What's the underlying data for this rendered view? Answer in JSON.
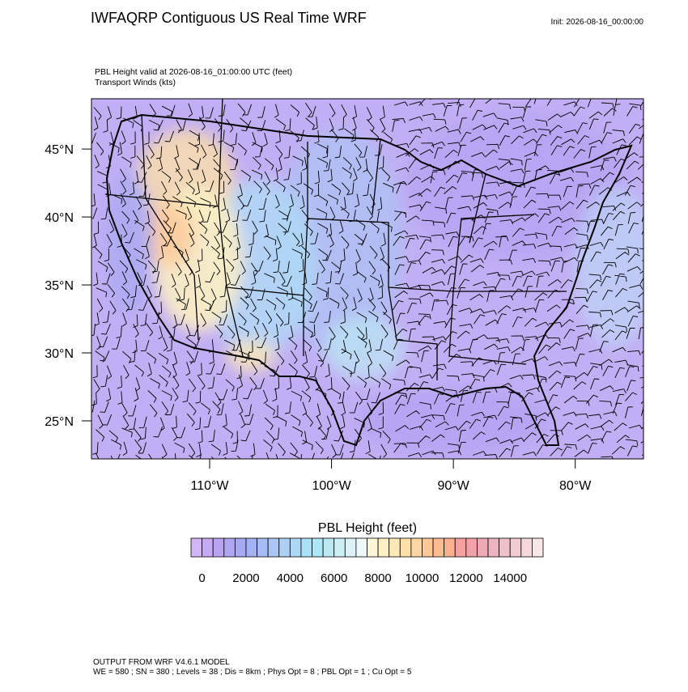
{
  "header": {
    "title": "IWFAQRP Contiguous US Real Time WRF",
    "init": "Init: 2026-08-16_00:00:00",
    "subtitle_line1": "PBL Height valid at 2026-08-16_01:00:00 UTC   (feet)",
    "subtitle_line2": "Transport Winds   (kts)"
  },
  "map": {
    "lat_lim": [
      22.2,
      48.7
    ],
    "lon_lim": [
      -119.7,
      -74.4
    ],
    "lat_ticks": [
      {
        "value": 25,
        "label": "25°N"
      },
      {
        "value": 30,
        "label": "30°N"
      },
      {
        "value": 35,
        "label": "35°N"
      },
      {
        "value": 40,
        "label": "40°N"
      },
      {
        "value": 45,
        "label": "45°N"
      }
    ],
    "lon_ticks": [
      {
        "value": -110,
        "label": "110°W"
      },
      {
        "value": -100,
        "label": "100°W"
      },
      {
        "value": -90,
        "label": "90°W"
      },
      {
        "value": -80,
        "label": "80°W"
      }
    ]
  },
  "colorbar": {
    "title": "PBL Height  (feet)",
    "lim": [
      -500,
      15500
    ],
    "ticks": [
      0,
      2000,
      4000,
      6000,
      8000,
      10000,
      12000,
      14000
    ],
    "colors": [
      "#d2b6f6",
      "#c6aaf3",
      "#baa4f2",
      "#aea6f1",
      "#a6aaf2",
      "#a2b2f4",
      "#a6bcf4",
      "#aac6f5",
      "#aed0f6",
      "#acd8f6",
      "#a8e0f6",
      "#aee6f6",
      "#bce8f4",
      "#cceef6",
      "#dcf2f8",
      "#eef8fa",
      "#fcf6d6",
      "#fcf0c4",
      "#fce8b4",
      "#fce0a8",
      "#fcd6a0",
      "#fcc898",
      "#fcbc92",
      "#fcb090",
      "#f8a0a0",
      "#f4a0a8",
      "#eeaab4",
      "#ecb4be",
      "#eec0c8",
      "#f0ccd2",
      "#f4d8dc",
      "#f8e6e8"
    ]
  },
  "footer": {
    "line1": "OUTPUT FROM WRF V4.6.1 MODEL",
    "line2": "WE = 580 ; SN = 380 ; Levels = 38 ; Dis = 8km ; Phys Opt = 8 ; PBL Opt = 1 ; Cu Opt = 5"
  }
}
